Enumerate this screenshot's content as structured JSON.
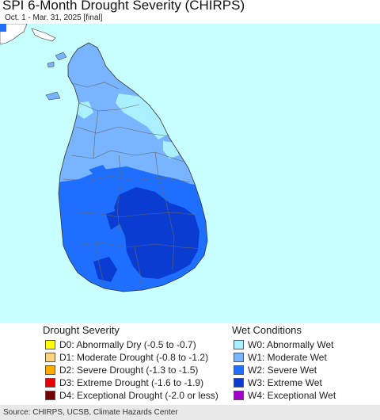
{
  "title": "SPI 6-Month Drought Severity (CHIRPS)",
  "subtitle": "Oct. 1 - Mar. 31, 2025 [final]",
  "map": {
    "sea_color": "#c8ffff",
    "india_color": "#ffffff",
    "nodata_color": "#a9a9a9"
  },
  "legend": {
    "drought": {
      "heading": "Drought Severity",
      "items": [
        {
          "label": "D0: Abnormally Dry (-0.5 to -0.7)",
          "color": "#ffff00"
        },
        {
          "label": "D1: Moderate Drought (-0.8 to -1.2)",
          "color": "#fcd37f"
        },
        {
          "label": "D2: Severe Drought (-1.3 to -1.5)",
          "color": "#ffaa00"
        },
        {
          "label": "D3: Extreme Drought (-1.6 to -1.9)",
          "color": "#e60000"
        },
        {
          "label": "D4: Exceptional Drought (-2.0 or less)",
          "color": "#730000"
        }
      ]
    },
    "wet": {
      "heading": "Wet Conditions",
      "items": [
        {
          "label": "W0: Abnormally Wet",
          "color": "#aaf0ff"
        },
        {
          "label": "W1: Moderate Wet",
          "color": "#78b4ff"
        },
        {
          "label": "W2: Severe Wet",
          "color": "#1e6eff"
        },
        {
          "label": "W3: Extreme Wet",
          "color": "#0a3cd2"
        },
        {
          "label": "W4: Exceptional Wet",
          "color": "#a000c8"
        }
      ]
    }
  },
  "footer": {
    "source": "Source: CHIRPS, UCSB, Climate Hazards Center"
  }
}
